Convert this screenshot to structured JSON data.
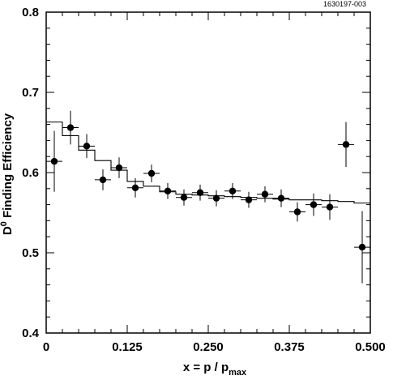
{
  "figure_id": "1630197-003",
  "chart_data": {
    "type": "scatter",
    "ylabel_main": "D",
    "ylabel_sup": "0",
    "ylabel_rest": " Finding  Efficiency",
    "xlabel_main": "x = p / p",
    "xlabel_sub": "max",
    "xlim": [
      0,
      0.5
    ],
    "ylim": [
      0.4,
      0.8
    ],
    "x_ticks": [
      0,
      0.125,
      0.25,
      0.375,
      0.5
    ],
    "x_tick_labels": [
      "0",
      "0.125",
      "0.250",
      "0.375",
      "0.500"
    ],
    "y_ticks": [
      0.4,
      0.5,
      0.6,
      0.7,
      0.8
    ],
    "y_tick_labels": [
      "0.4",
      "0.5",
      "0.6",
      "0.7",
      "0.8"
    ],
    "grid": false,
    "legend": "none",
    "series": [
      {
        "kind": "points_with_errors",
        "points": [
          {
            "x": 0.0125,
            "y": 0.614,
            "xerr": 0.0125,
            "yerr": 0.038
          },
          {
            "x": 0.0375,
            "y": 0.656,
            "xerr": 0.0125,
            "yerr": 0.021
          },
          {
            "x": 0.0625,
            "y": 0.633,
            "xerr": 0.0125,
            "yerr": 0.015
          },
          {
            "x": 0.0875,
            "y": 0.591,
            "xerr": 0.0125,
            "yerr": 0.013
          },
          {
            "x": 0.1125,
            "y": 0.606,
            "xerr": 0.0125,
            "yerr": 0.013
          },
          {
            "x": 0.1375,
            "y": 0.581,
            "xerr": 0.0125,
            "yerr": 0.012
          },
          {
            "x": 0.1625,
            "y": 0.599,
            "xerr": 0.0125,
            "yerr": 0.011
          },
          {
            "x": 0.1875,
            "y": 0.577,
            "xerr": 0.0125,
            "yerr": 0.01
          },
          {
            "x": 0.2125,
            "y": 0.569,
            "xerr": 0.0125,
            "yerr": 0.01
          },
          {
            "x": 0.2375,
            "y": 0.575,
            "xerr": 0.0125,
            "yerr": 0.01
          },
          {
            "x": 0.2625,
            "y": 0.568,
            "xerr": 0.0125,
            "yerr": 0.01
          },
          {
            "x": 0.2875,
            "y": 0.577,
            "xerr": 0.0125,
            "yerr": 0.01
          },
          {
            "x": 0.3125,
            "y": 0.566,
            "xerr": 0.0125,
            "yerr": 0.01
          },
          {
            "x": 0.3375,
            "y": 0.573,
            "xerr": 0.0125,
            "yerr": 0.01
          },
          {
            "x": 0.3625,
            "y": 0.568,
            "xerr": 0.0125,
            "yerr": 0.011
          },
          {
            "x": 0.3875,
            "y": 0.551,
            "xerr": 0.0125,
            "yerr": 0.012
          },
          {
            "x": 0.4125,
            "y": 0.56,
            "xerr": 0.0125,
            "yerr": 0.014
          },
          {
            "x": 0.4375,
            "y": 0.557,
            "xerr": 0.0125,
            "yerr": 0.016
          },
          {
            "x": 0.4625,
            "y": 0.635,
            "xerr": 0.0125,
            "yerr": 0.028
          },
          {
            "x": 0.4875,
            "y": 0.507,
            "xerr": 0.0125,
            "yerr": 0.045
          }
        ]
      },
      {
        "kind": "step_histogram",
        "edges": [
          0,
          0.025,
          0.05,
          0.075,
          0.1,
          0.125,
          0.15,
          0.175,
          0.2,
          0.225,
          0.25,
          0.275,
          0.3,
          0.325,
          0.35,
          0.375,
          0.4,
          0.425,
          0.45,
          0.475,
          0.5
        ],
        "values": [
          0.663,
          0.646,
          0.628,
          0.615,
          0.603,
          0.589,
          0.583,
          0.576,
          0.573,
          0.572,
          0.571,
          0.57,
          0.569,
          0.568,
          0.567,
          0.566,
          0.566,
          0.565,
          0.564,
          0.562
        ]
      }
    ]
  }
}
